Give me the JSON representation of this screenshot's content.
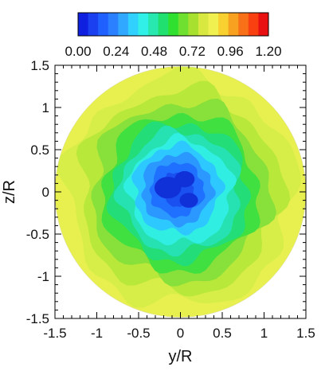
{
  "chart_data": {
    "type": "heatmap",
    "shape": "circular contour map",
    "xlabel": "y/R",
    "ylabel": "z/R",
    "xlim": [
      -1.5,
      1.5
    ],
    "ylim": [
      -1.5,
      1.5
    ],
    "x_ticks": [
      "-1.5",
      "-1",
      "-0.5",
      "0",
      "0.5",
      "1",
      "1.5"
    ],
    "y_ticks": [
      "1.5",
      "1",
      "0.5",
      "0",
      "-0.5",
      "-1",
      "-1.5"
    ],
    "colorbar": {
      "range": [
        0.0,
        1.2
      ],
      "tick_labels": [
        "0.00",
        "0.24",
        "0.48",
        "0.72",
        "0.96",
        "1.20"
      ],
      "colors": [
        "#1020e0",
        "#1a40f0",
        "#2060ff",
        "#2a80ff",
        "#30a8ff",
        "#30d0ff",
        "#30f0e8",
        "#28e8b0",
        "#20e070",
        "#30e030",
        "#70e030",
        "#a8e030",
        "#d8e840",
        "#f0f050",
        "#f8d030",
        "#f8a020",
        "#f87018",
        "#f84010",
        "#e81010"
      ]
    },
    "field": {
      "min_center": {
        "y": 0.0,
        "z": 0.0,
        "value": 0.1
      },
      "edge_value": 0.95,
      "levels": [
        {
          "r": 1.5,
          "value": 0.94,
          "color": "#e8f050"
        },
        {
          "r": 1.36,
          "value": 0.9,
          "color": "#d8ee48"
        },
        {
          "r": 1.2,
          "value": 0.82,
          "color": "#b8e83a"
        },
        {
          "r": 1.06,
          "value": 0.72,
          "color": "#88e03a"
        },
        {
          "r": 0.93,
          "value": 0.62,
          "color": "#40e040"
        },
        {
          "r": 0.82,
          "value": 0.55,
          "color": "#22dd78"
        },
        {
          "r": 0.72,
          "value": 0.48,
          "color": "#26e2b2"
        },
        {
          "r": 0.62,
          "value": 0.4,
          "color": "#30eee2"
        },
        {
          "r": 0.52,
          "value": 0.32,
          "color": "#2cc8ff"
        },
        {
          "r": 0.42,
          "value": 0.24,
          "color": "#2a98ff"
        },
        {
          "r": 0.32,
          "value": 0.16,
          "color": "#2070ff"
        },
        {
          "r": 0.2,
          "value": 0.1,
          "color": "#1a50f0"
        }
      ]
    }
  }
}
